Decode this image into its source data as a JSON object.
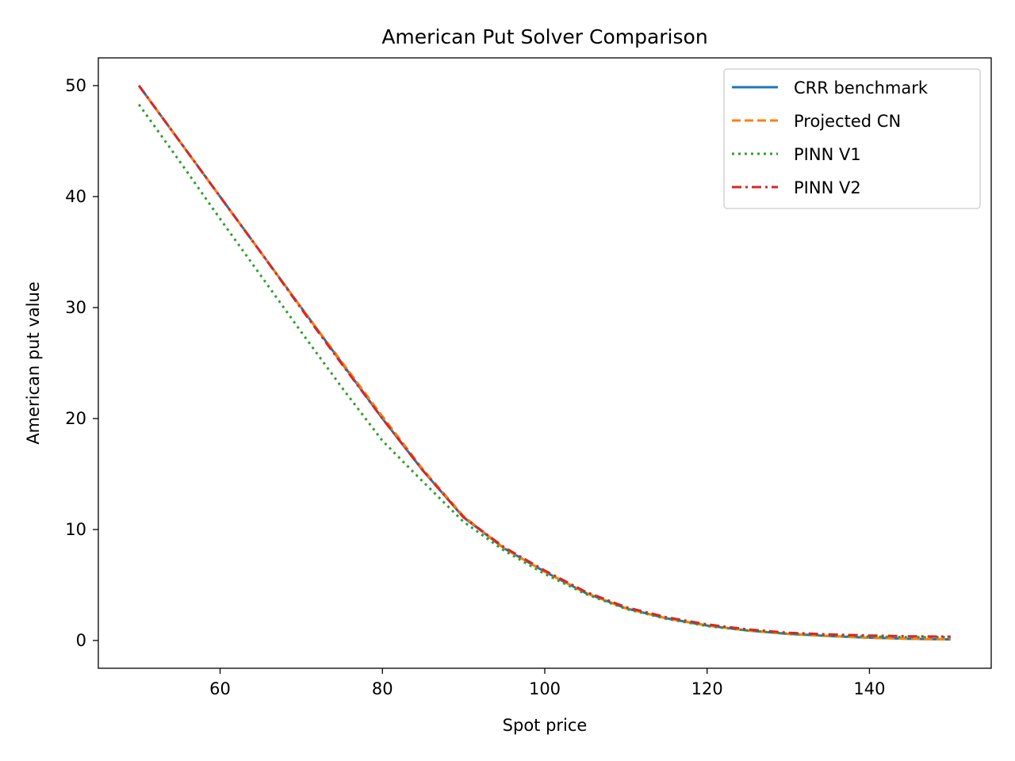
{
  "chart_data": {
    "type": "line",
    "title": "American Put Solver Comparison",
    "xlabel": "Spot price",
    "ylabel": "American put value",
    "xlim": [
      45,
      155
    ],
    "ylim": [
      -2.5,
      52.5
    ],
    "xticks": [
      60,
      80,
      100,
      120,
      140
    ],
    "yticks": [
      0,
      10,
      20,
      30,
      40,
      50
    ],
    "grid": false,
    "legend_position": "top-right",
    "x": [
      50,
      55,
      60,
      65,
      70,
      75,
      80,
      85,
      90,
      95,
      100,
      105,
      110,
      115,
      120,
      125,
      130,
      135,
      140,
      145,
      150
    ],
    "series": [
      {
        "name": "CRR benchmark",
        "color": "#1f77b4",
        "dash": "solid",
        "values": [
          50.0,
          45.0,
          40.0,
          35.0,
          30.0,
          25.0,
          20.0,
          15.3,
          11.1,
          8.3,
          6.2,
          4.3,
          2.9,
          2.0,
          1.35,
          0.9,
          0.6,
          0.4,
          0.25,
          0.15,
          0.1
        ]
      },
      {
        "name": "Projected CN",
        "color": "#ff7f0e",
        "dash": "dashed",
        "values": [
          50.0,
          45.0,
          40.0,
          35.0,
          30.0,
          25.1,
          20.2,
          15.4,
          11.2,
          8.3,
          6.2,
          4.3,
          2.9,
          2.0,
          1.35,
          0.9,
          0.6,
          0.4,
          0.25,
          0.15,
          0.1
        ]
      },
      {
        "name": "PINN V1",
        "color": "#2ca02c",
        "dash": "dotted",
        "values": [
          48.3,
          43.2,
          38.0,
          32.9,
          27.8,
          22.8,
          18.0,
          14.3,
          10.7,
          8.1,
          6.0,
          4.2,
          2.85,
          1.95,
          1.3,
          0.9,
          0.6,
          0.45,
          0.35,
          0.3,
          0.3
        ]
      },
      {
        "name": "PINN V2",
        "color": "#d62728",
        "dash": "dashdot",
        "values": [
          50.0,
          45.0,
          40.0,
          35.0,
          29.9,
          24.9,
          20.0,
          15.3,
          11.1,
          8.4,
          6.3,
          4.4,
          3.0,
          2.1,
          1.45,
          1.0,
          0.7,
          0.55,
          0.45,
          0.38,
          0.35
        ]
      }
    ]
  }
}
